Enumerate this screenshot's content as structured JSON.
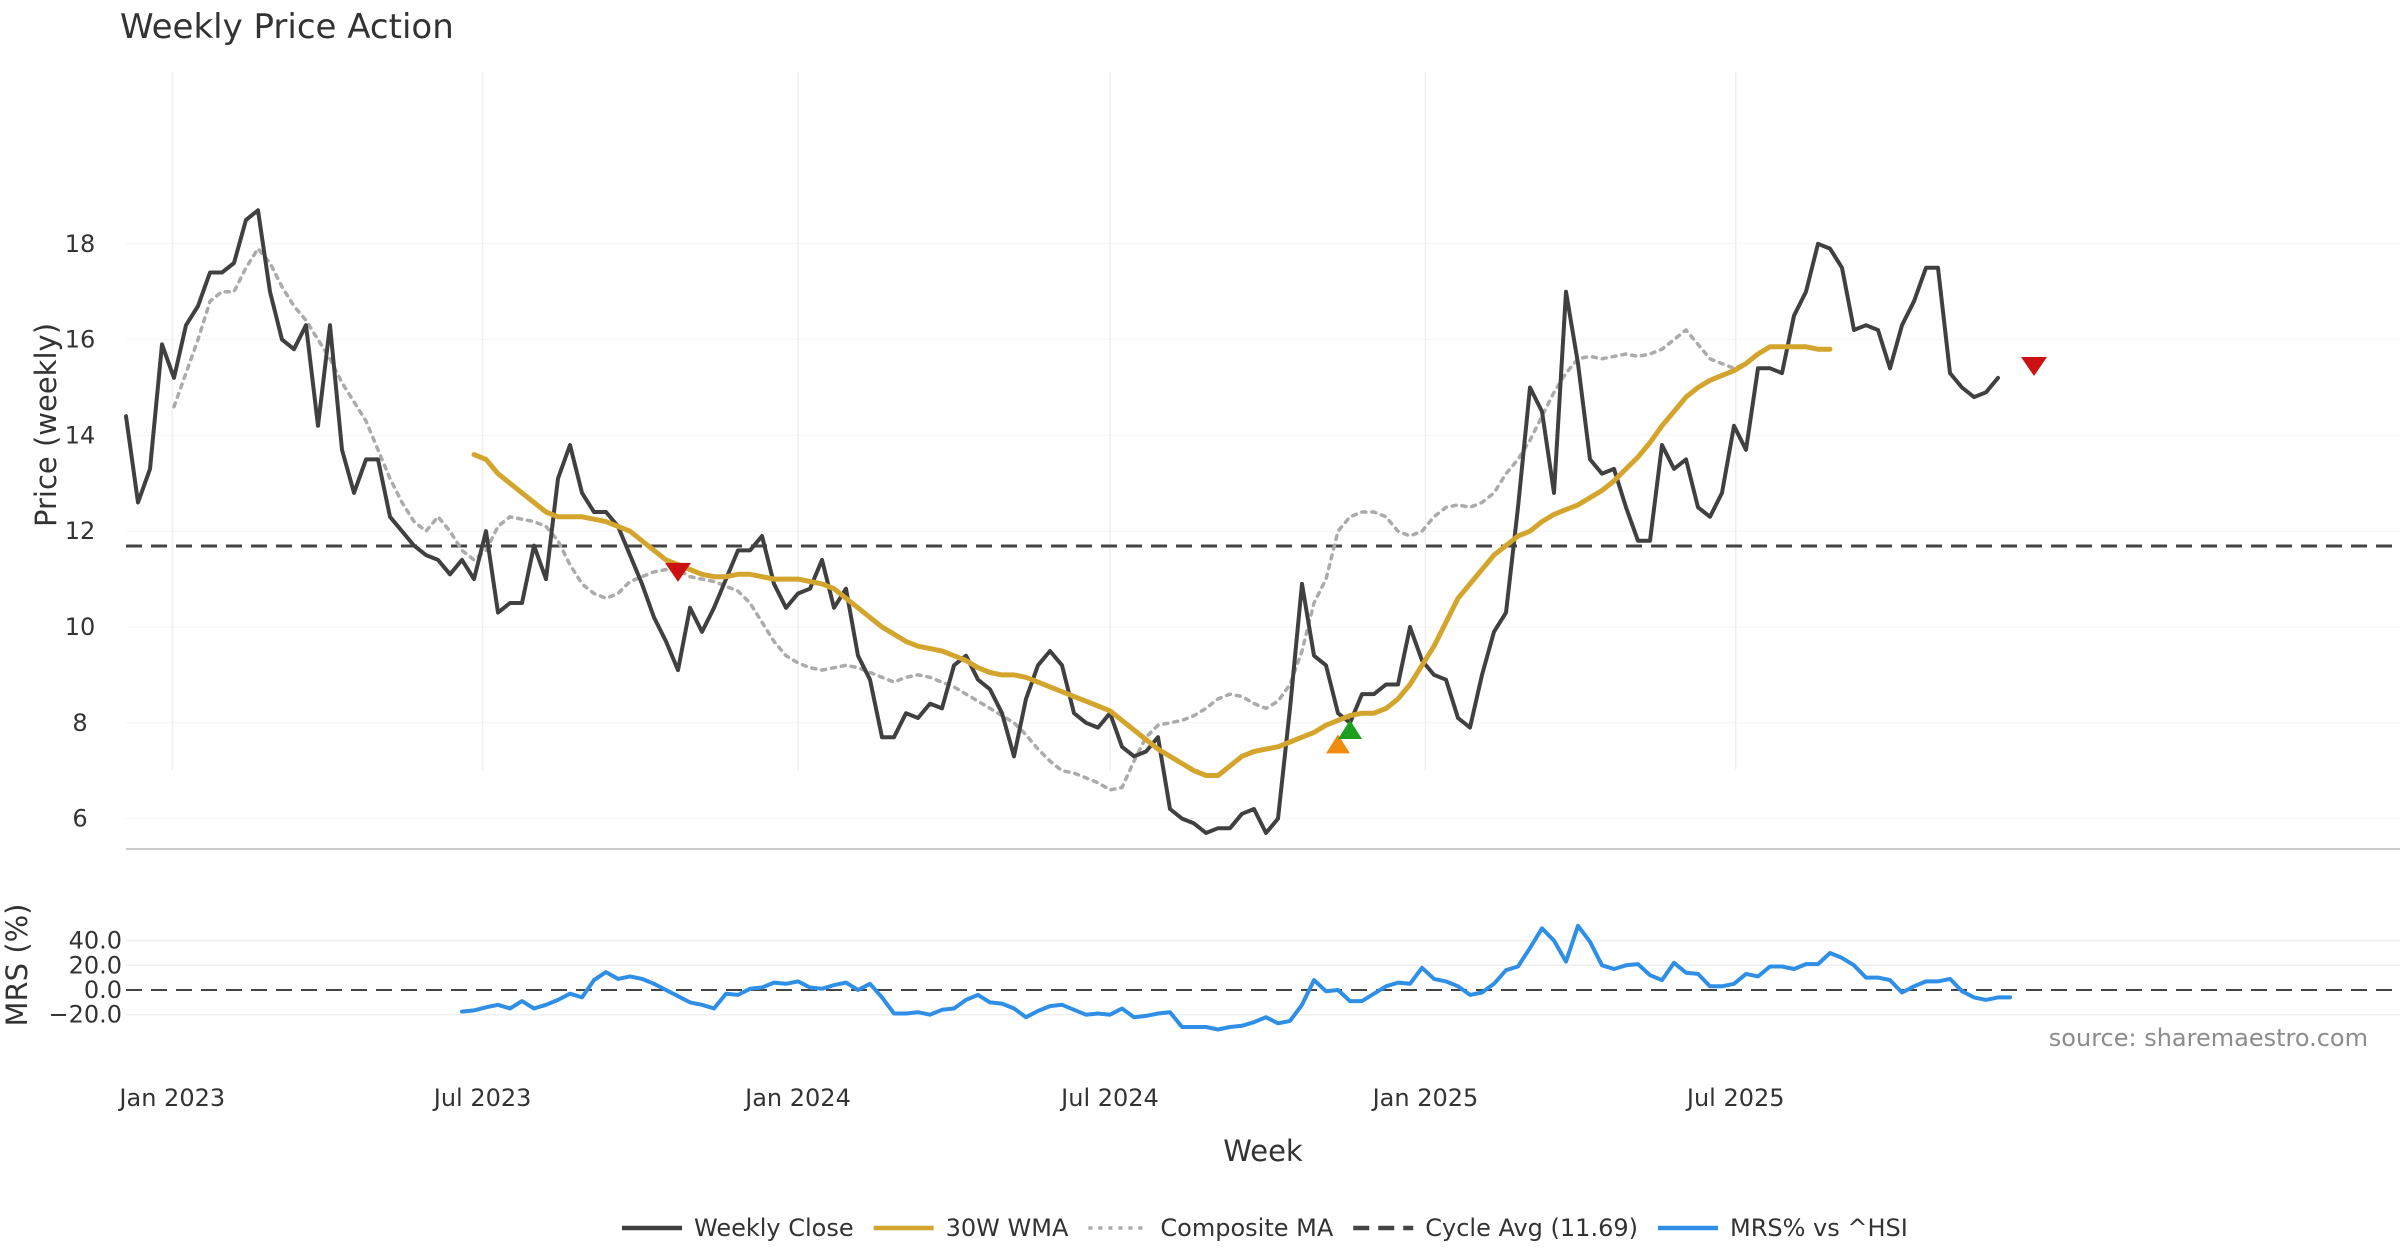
{
  "chart_data": {
    "type": "line",
    "title": "Weekly Price Action",
    "xlabel": "Week",
    "source": "source: sharemaestro.com",
    "x_ticks": [
      "Jan 2023",
      "Jul 2023",
      "Jan 2024",
      "Jul 2024",
      "Jan 2025",
      "Jul 2025"
    ],
    "x_start": "2022-12-05",
    "price_panel": {
      "ylabel": "Price (weekly)",
      "ylim": [
        5.0,
        19.5
      ],
      "y_ticks": [
        "6",
        "8",
        "10",
        "12",
        "14",
        "16",
        "18"
      ],
      "grid": true,
      "cycle_avg": 11.69
    },
    "mrs_panel": {
      "ylabel": "MRS (%)",
      "ylim": [
        -30,
        55
      ],
      "y_ticks": [
        "40.0",
        "20.0",
        "0.0",
        "−20.0"
      ],
      "zero_line": true
    },
    "series": [
      {
        "name": "Weekly Close",
        "color": "#404040",
        "style": "solid",
        "start": 0,
        "values": [
          14.4,
          12.6,
          13.3,
          15.9,
          15.2,
          16.3,
          16.7,
          17.4,
          17.4,
          17.6,
          18.5,
          18.7,
          17.0,
          16.0,
          15.8,
          16.3,
          14.2,
          16.3,
          13.7,
          12.8,
          13.5,
          13.5,
          12.3,
          12.0,
          11.7,
          11.5,
          11.4,
          11.1,
          11.4,
          11.0,
          12.0,
          10.3,
          10.5,
          10.5,
          11.7,
          11.0,
          13.1,
          13.8,
          12.8,
          12.4,
          12.4,
          12.1,
          11.5,
          10.9,
          10.2,
          9.7,
          9.1,
          10.4,
          9.9,
          10.4,
          11.0,
          11.6,
          11.6,
          11.9,
          10.9,
          10.4,
          10.7,
          10.8,
          11.4,
          10.4,
          10.8,
          9.4,
          8.9,
          7.7,
          7.7,
          8.2,
          8.1,
          8.4,
          8.3,
          9.2,
          9.4,
          8.9,
          8.7,
          8.2,
          7.3,
          8.5,
          9.2,
          9.5,
          9.2,
          8.2,
          8.0,
          7.9,
          8.2,
          7.5,
          7.3,
          7.4,
          7.7,
          6.2,
          6.0,
          5.9,
          5.7,
          5.8,
          5.8,
          6.1,
          6.2,
          5.7,
          6.0,
          8.3,
          10.9,
          9.4,
          9.2,
          8.2,
          8.0,
          8.6,
          8.6,
          8.8,
          8.8,
          10.0,
          9.3,
          9.0,
          8.9,
          8.1,
          7.9,
          9.0,
          9.9,
          10.3,
          12.5,
          15.0,
          14.5,
          12.8,
          17.0,
          15.5,
          13.5,
          13.2,
          13.3,
          12.5,
          11.8,
          11.8,
          13.8,
          13.3,
          13.5,
          12.5,
          12.3,
          12.8,
          14.2,
          13.7,
          15.4,
          15.4,
          15.3,
          16.5,
          17.0,
          18.0,
          17.9,
          17.5,
          16.2,
          16.3,
          16.2,
          15.4,
          16.3,
          16.8,
          17.5,
          17.5,
          15.3,
          15.0,
          14.8,
          14.9,
          15.2
        ]
      },
      {
        "name": "30W WMA",
        "color": "#d4a52c",
        "style": "solid",
        "start": 29,
        "values": [
          13.6,
          13.5,
          13.2,
          13.0,
          12.8,
          12.6,
          12.4,
          12.3,
          12.3,
          12.3,
          12.25,
          12.2,
          12.1,
          12.0,
          11.8,
          11.6,
          11.4,
          11.3,
          11.2,
          11.1,
          11.05,
          11.05,
          11.1,
          11.1,
          11.05,
          11.0,
          11.0,
          11.0,
          10.95,
          10.9,
          10.8,
          10.6,
          10.4,
          10.2,
          10.0,
          9.85,
          9.7,
          9.6,
          9.55,
          9.5,
          9.4,
          9.3,
          9.15,
          9.05,
          9.0,
          9.0,
          8.95,
          8.85,
          8.75,
          8.65,
          8.55,
          8.45,
          8.35,
          8.25,
          8.05,
          7.85,
          7.65,
          7.45,
          7.3,
          7.15,
          7.0,
          6.9,
          6.9,
          7.1,
          7.3,
          7.4,
          7.45,
          7.5,
          7.6,
          7.7,
          7.8,
          7.95,
          8.05,
          8.15,
          8.2,
          8.2,
          8.3,
          8.5,
          8.8,
          9.2,
          9.6,
          10.1,
          10.6,
          10.9,
          11.2,
          11.5,
          11.7,
          11.9,
          12.0,
          12.2,
          12.35,
          12.45,
          12.55,
          12.7,
          12.85,
          13.05,
          13.3,
          13.55,
          13.85,
          14.2,
          14.5,
          14.8,
          15.0,
          15.15,
          15.25,
          15.35,
          15.5,
          15.7,
          15.85,
          15.85,
          15.85,
          15.85,
          15.8,
          15.8
        ]
      },
      {
        "name": "Composite MA",
        "color": "#ababab",
        "style": "dotted",
        "start": 4,
        "values": [
          14.6,
          15.3,
          16.0,
          16.8,
          17.0,
          17.0,
          17.5,
          17.9,
          17.6,
          17.1,
          16.7,
          16.4,
          16.0,
          15.6,
          15.1,
          14.7,
          14.3,
          13.7,
          13.1,
          12.6,
          12.2,
          12.0,
          12.3,
          12.0,
          11.6,
          11.4,
          11.6,
          12.1,
          12.3,
          12.25,
          12.2,
          12.1,
          11.8,
          11.3,
          10.9,
          10.7,
          10.6,
          10.7,
          10.95,
          11.05,
          11.15,
          11.2,
          11.2,
          11.05,
          11.0,
          10.95,
          10.85,
          10.75,
          10.5,
          10.1,
          9.7,
          9.4,
          9.25,
          9.15,
          9.1,
          9.15,
          9.2,
          9.15,
          9.05,
          8.95,
          8.85,
          8.95,
          9.0,
          8.95,
          8.85,
          8.75,
          8.6,
          8.45,
          8.3,
          8.15,
          8.0,
          7.75,
          7.45,
          7.2,
          7.0,
          6.95,
          6.85,
          6.75,
          6.6,
          6.65,
          7.2,
          7.7,
          7.95,
          8.0,
          8.05,
          8.15,
          8.3,
          8.5,
          8.6,
          8.55,
          8.4,
          8.3,
          8.45,
          8.8,
          9.5,
          10.5,
          11.0,
          12.0,
          12.3,
          12.4,
          12.4,
          12.3,
          12.0,
          11.9,
          12.0,
          12.3,
          12.5,
          12.55,
          12.5,
          12.6,
          12.8,
          13.2,
          13.5,
          13.9,
          14.4,
          14.9,
          15.3,
          15.6,
          15.65,
          15.6,
          15.65,
          15.7,
          15.65,
          15.7,
          15.8,
          16.0,
          16.2,
          15.9,
          15.6,
          15.5,
          15.4,
          15.5
        ]
      },
      {
        "name": "Cycle Avg (11.69)",
        "color": "#444444",
        "style": "dashed",
        "value": 11.69
      },
      {
        "name": "MRS% vs ^HSI",
        "color": "#2f8fe6",
        "style": "solid",
        "panel": "mrs",
        "start": 28,
        "values": [
          -17.5,
          -16.5,
          -14,
          -12,
          -15,
          -9,
          -15,
          -12,
          -8,
          -3,
          -6,
          8,
          14.5,
          9,
          11,
          9,
          5,
          0,
          -5,
          -10,
          -12,
          -15,
          -3,
          -4,
          1,
          2,
          6,
          5,
          7,
          2,
          1,
          4,
          6,
          0,
          5,
          -6,
          -19,
          -19,
          -18,
          -20,
          -16,
          -15,
          -8,
          -4,
          -10,
          -11,
          -15,
          -22,
          -17,
          -13,
          -12,
          -16,
          -20,
          -19,
          -20,
          -15,
          -22,
          -21,
          -19,
          -18,
          -30,
          -30,
          -30,
          -32,
          -30,
          -29,
          -26,
          -22,
          -27,
          -25,
          -12,
          8,
          -1,
          0,
          -9,
          -9,
          -3,
          3,
          6,
          5,
          18,
          9,
          7,
          3,
          -4,
          -2,
          5,
          16,
          19,
          34,
          50,
          40,
          23,
          52,
          39,
          20,
          17,
          20,
          21,
          12,
          8,
          22,
          14,
          13,
          3,
          3,
          5,
          13,
          11,
          19,
          19,
          17,
          21,
          21,
          30,
          26,
          20,
          10,
          10,
          8,
          -2,
          3,
          7,
          7,
          9,
          -1,
          -6,
          -8,
          -6,
          -6
        ]
      }
    ],
    "markers": [
      {
        "kind": "down",
        "color": "#cc1111",
        "week": 46,
        "value": 11.15
      },
      {
        "kind": "up",
        "color": "#f28c0f",
        "week": 101,
        "value": 7.55
      },
      {
        "kind": "up",
        "color": "#1e9e1e",
        "week": 102,
        "value": 7.85
      },
      {
        "kind": "down",
        "color": "#cc1111",
        "week": 159,
        "value": 15.45
      }
    ],
    "legend": {
      "placement": "bottom",
      "items": [
        {
          "label": "Weekly Close",
          "color": "#404040",
          "style": "solid"
        },
        {
          "label": "30W WMA",
          "color": "#d4a52c",
          "style": "solid"
        },
        {
          "label": "Composite MA",
          "color": "#ababab",
          "style": "dotted"
        },
        {
          "label": "Cycle Avg (11.69)",
          "color": "#444444",
          "style": "dashed"
        },
        {
          "label": "MRS% vs ^HSI",
          "color": "#2f8fe6",
          "style": "solid"
        }
      ]
    }
  }
}
